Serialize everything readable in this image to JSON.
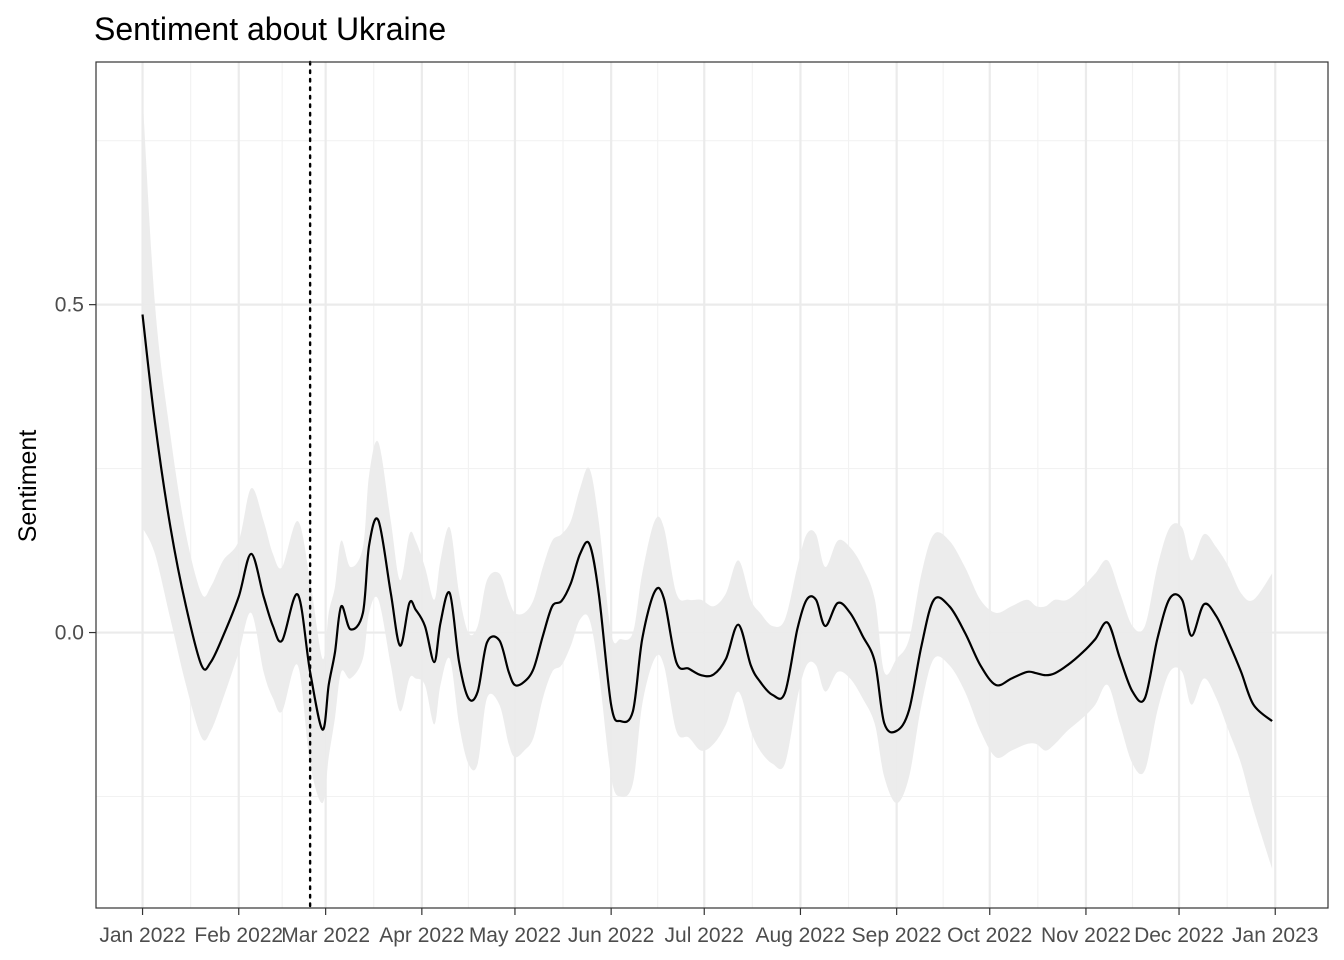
{
  "chart_data": {
    "type": "line",
    "title": "Sentiment about Ukraine",
    "xlabel": "",
    "ylabel": "Sentiment",
    "x_tick_labels": [
      "Jan 2022",
      "Feb 2022",
      "Mar 2022",
      "Apr 2022",
      "May 2022",
      "Jun 2022",
      "Jul 2022",
      "Aug 2022",
      "Sep 2022",
      "Oct 2022",
      "Nov 2022",
      "Dec 2022",
      "Jan 2023"
    ],
    "x_ticks": [
      "2022-01-01",
      "2022-02-01",
      "2022-03-01",
      "2022-04-01",
      "2022-05-01",
      "2022-06-01",
      "2022-07-01",
      "2022-08-01",
      "2022-09-01",
      "2022-10-01",
      "2022-11-01",
      "2022-12-01",
      "2023-01-01"
    ],
    "y_ticks": [
      0.0,
      0.5
    ],
    "y_tick_labels": [
      "0.0",
      "0.5"
    ],
    "xlim": [
      "2021-12-17",
      "2023-01-18"
    ],
    "ylim": [
      -0.42,
      0.87
    ],
    "grid": true,
    "vline": {
      "x": "2022-02-24",
      "style": "dotted",
      "color": "#000000"
    },
    "series": [
      {
        "color": "#000000",
        "band_color": "#ebebeb",
        "x": [
          "2022-01-01",
          "2022-01-05",
          "2022-01-10",
          "2022-01-15",
          "2022-01-20",
          "2022-01-23",
          "2022-01-27",
          "2022-02-01",
          "2022-02-05",
          "2022-02-09",
          "2022-02-12",
          "2022-02-15",
          "2022-02-20",
          "2022-02-24",
          "2022-02-28",
          "2022-03-02",
          "2022-03-04",
          "2022-03-06",
          "2022-03-09",
          "2022-03-13",
          "2022-03-15",
          "2022-03-18",
          "2022-03-22",
          "2022-03-25",
          "2022-03-28",
          "2022-03-30",
          "2022-04-02",
          "2022-04-05",
          "2022-04-07",
          "2022-04-10",
          "2022-04-13",
          "2022-04-16",
          "2022-04-19",
          "2022-04-22",
          "2022-04-26",
          "2022-04-29",
          "2022-05-01",
          "2022-05-04",
          "2022-05-07",
          "2022-05-10",
          "2022-05-13",
          "2022-05-16",
          "2022-05-19",
          "2022-05-22",
          "2022-05-25",
          "2022-05-28",
          "2022-06-01",
          "2022-06-04",
          "2022-06-08",
          "2022-06-11",
          "2022-06-15",
          "2022-06-18",
          "2022-06-22",
          "2022-06-26",
          "2022-06-30",
          "2022-07-04",
          "2022-07-08",
          "2022-07-12",
          "2022-07-16",
          "2022-07-19",
          "2022-07-23",
          "2022-07-27",
          "2022-07-31",
          "2022-08-03",
          "2022-08-06",
          "2022-08-09",
          "2022-08-13",
          "2022-08-17",
          "2022-08-21",
          "2022-08-25",
          "2022-08-28",
          "2022-09-01",
          "2022-09-05",
          "2022-09-09",
          "2022-09-13",
          "2022-09-18",
          "2022-09-23",
          "2022-09-28",
          "2022-10-03",
          "2022-10-08",
          "2022-10-13",
          "2022-10-16",
          "2022-10-19",
          "2022-10-22",
          "2022-10-26",
          "2022-10-31",
          "2022-11-04",
          "2022-11-08",
          "2022-11-12",
          "2022-11-16",
          "2022-11-20",
          "2022-11-24",
          "2022-11-28",
          "2022-12-02",
          "2022-12-05",
          "2022-12-09",
          "2022-12-13",
          "2022-12-17",
          "2022-12-21",
          "2022-12-25",
          "2022-12-31"
        ],
        "y": [
          0.485,
          0.32,
          0.16,
          0.04,
          -0.05,
          -0.045,
          -0.005,
          0.055,
          0.12,
          0.055,
          0.01,
          -0.012,
          0.058,
          -0.06,
          -0.148,
          -0.08,
          -0.03,
          0.04,
          0.005,
          0.03,
          0.133,
          0.171,
          0.06,
          -0.02,
          0.045,
          0.035,
          0.01,
          -0.045,
          0.015,
          0.06,
          -0.045,
          -0.1,
          -0.09,
          -0.015,
          -0.012,
          -0.06,
          -0.08,
          -0.075,
          -0.055,
          -0.005,
          0.04,
          0.048,
          0.075,
          0.12,
          0.135,
          0.06,
          -0.11,
          -0.135,
          -0.12,
          -0.01,
          0.062,
          0.052,
          -0.045,
          -0.055,
          -0.065,
          -0.064,
          -0.04,
          0.012,
          -0.05,
          -0.075,
          -0.095,
          -0.092,
          0.005,
          0.05,
          0.05,
          0.01,
          0.045,
          0.03,
          -0.005,
          -0.045,
          -0.138,
          -0.15,
          -0.118,
          -0.02,
          0.05,
          0.04,
          0.0,
          -0.05,
          -0.08,
          -0.07,
          -0.06,
          -0.062,
          -0.065,
          -0.062,
          -0.05,
          -0.03,
          -0.01,
          0.015,
          -0.04,
          -0.09,
          -0.1,
          -0.01,
          0.052,
          0.05,
          -0.005,
          0.043,
          0.025,
          -0.015,
          -0.06,
          -0.11,
          -0.135
        ],
        "lower": [
          0.16,
          0.12,
          0.02,
          -0.08,
          -0.16,
          -0.15,
          -0.1,
          -0.03,
          0.03,
          -0.06,
          -0.1,
          -0.12,
          -0.05,
          -0.2,
          -0.26,
          -0.19,
          -0.13,
          -0.06,
          -0.07,
          -0.04,
          0.03,
          0.05,
          -0.05,
          -0.12,
          -0.07,
          -0.07,
          -0.08,
          -0.14,
          -0.08,
          -0.04,
          -0.14,
          -0.2,
          -0.2,
          -0.1,
          -0.11,
          -0.17,
          -0.19,
          -0.18,
          -0.16,
          -0.1,
          -0.06,
          -0.05,
          -0.02,
          0.02,
          0.02,
          -0.06,
          -0.22,
          -0.25,
          -0.23,
          -0.11,
          -0.04,
          -0.05,
          -0.15,
          -0.16,
          -0.18,
          -0.17,
          -0.14,
          -0.09,
          -0.15,
          -0.18,
          -0.2,
          -0.2,
          -0.1,
          -0.05,
          -0.05,
          -0.09,
          -0.06,
          -0.07,
          -0.1,
          -0.14,
          -0.22,
          -0.26,
          -0.22,
          -0.11,
          -0.04,
          -0.05,
          -0.09,
          -0.15,
          -0.19,
          -0.18,
          -0.17,
          -0.17,
          -0.18,
          -0.17,
          -0.15,
          -0.13,
          -0.11,
          -0.08,
          -0.14,
          -0.2,
          -0.21,
          -0.12,
          -0.06,
          -0.06,
          -0.11,
          -0.07,
          -0.1,
          -0.15,
          -0.2,
          -0.27,
          -0.36
        ],
        "upper": [
          0.82,
          0.5,
          0.3,
          0.15,
          0.06,
          0.07,
          0.11,
          0.14,
          0.22,
          0.17,
          0.12,
          0.1,
          0.17,
          0.08,
          -0.04,
          0.03,
          0.07,
          0.14,
          0.1,
          0.13,
          0.24,
          0.29,
          0.17,
          0.08,
          0.15,
          0.14,
          0.1,
          0.05,
          0.11,
          0.16,
          0.06,
          0.0,
          0.01,
          0.08,
          0.09,
          0.05,
          0.03,
          0.03,
          0.05,
          0.1,
          0.14,
          0.15,
          0.17,
          0.22,
          0.25,
          0.17,
          0.0,
          -0.01,
          0.0,
          0.09,
          0.17,
          0.16,
          0.06,
          0.05,
          0.05,
          0.04,
          0.06,
          0.11,
          0.05,
          0.03,
          0.01,
          0.02,
          0.1,
          0.15,
          0.15,
          0.1,
          0.14,
          0.13,
          0.1,
          0.05,
          -0.06,
          -0.04,
          -0.01,
          0.09,
          0.15,
          0.14,
          0.1,
          0.05,
          0.03,
          0.04,
          0.05,
          0.04,
          0.04,
          0.05,
          0.05,
          0.07,
          0.09,
          0.11,
          0.06,
          0.01,
          0.01,
          0.1,
          0.16,
          0.16,
          0.11,
          0.15,
          0.13,
          0.1,
          0.06,
          0.05,
          0.09
        ]
      }
    ]
  }
}
